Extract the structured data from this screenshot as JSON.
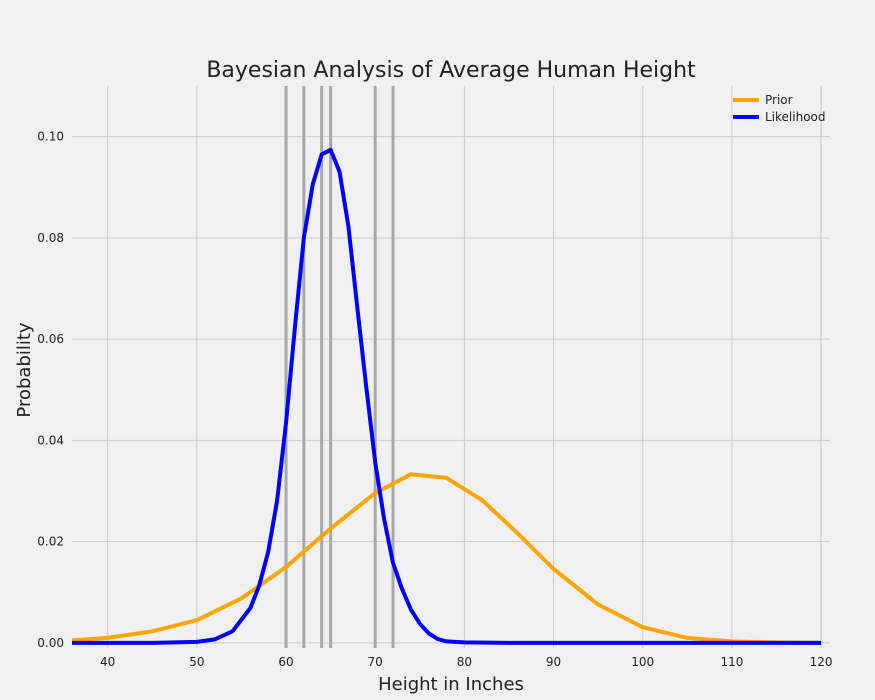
{
  "chart_data": {
    "type": "line",
    "title": "Bayesian Analysis of Average Human Height",
    "xlabel": "Height in Inches",
    "ylabel": "Probability",
    "xlim": [
      36,
      121
    ],
    "ylim": [
      -0.001,
      0.11
    ],
    "x_ticks": [
      40,
      50,
      60,
      70,
      80,
      90,
      100,
      110,
      120
    ],
    "y_ticks": [
      0.0,
      0.02,
      0.04,
      0.06,
      0.08,
      0.1
    ],
    "y_tick_labels": [
      "0.00",
      "0.02",
      "0.04",
      "0.06",
      "0.08",
      "0.10"
    ],
    "grid": true,
    "legend_position": "top-right",
    "observations": [
      60,
      62,
      64,
      65,
      70,
      72
    ],
    "series": [
      {
        "name": "Prior",
        "color": "#ffa500",
        "x": [
          36,
          40,
          45,
          50,
          55,
          60,
          65,
          70,
          74,
          78,
          82,
          86,
          90,
          95,
          100,
          105,
          110,
          115,
          120
        ],
        "y": [
          0.0005,
          0.001,
          0.0023,
          0.0045,
          0.0088,
          0.015,
          0.0226,
          0.0296,
          0.0333,
          0.0326,
          0.0282,
          0.0216,
          0.0146,
          0.0076,
          0.0031,
          0.001,
          0.0003,
          0.0001,
          0.0
        ]
      },
      {
        "name": "Likelihood",
        "color": "#0000ff",
        "x": [
          36,
          45,
          50,
          52,
          54,
          56,
          57,
          58,
          59,
          60,
          61,
          62,
          63,
          64,
          65,
          66,
          67,
          68,
          69,
          70,
          71,
          72,
          73,
          74,
          75,
          76,
          77,
          78,
          80,
          85,
          90,
          120
        ],
        "y": [
          0.0,
          0.0,
          0.0002,
          0.0007,
          0.0023,
          0.0069,
          0.0114,
          0.018,
          0.0281,
          0.0434,
          0.0623,
          0.0801,
          0.0906,
          0.0965,
          0.0974,
          0.0931,
          0.0823,
          0.0661,
          0.0505,
          0.0357,
          0.0245,
          0.0158,
          0.0107,
          0.0066,
          0.0038,
          0.0019,
          0.0008,
          0.0003,
          0.0001,
          0.0,
          0.0,
          0.0
        ]
      }
    ]
  }
}
